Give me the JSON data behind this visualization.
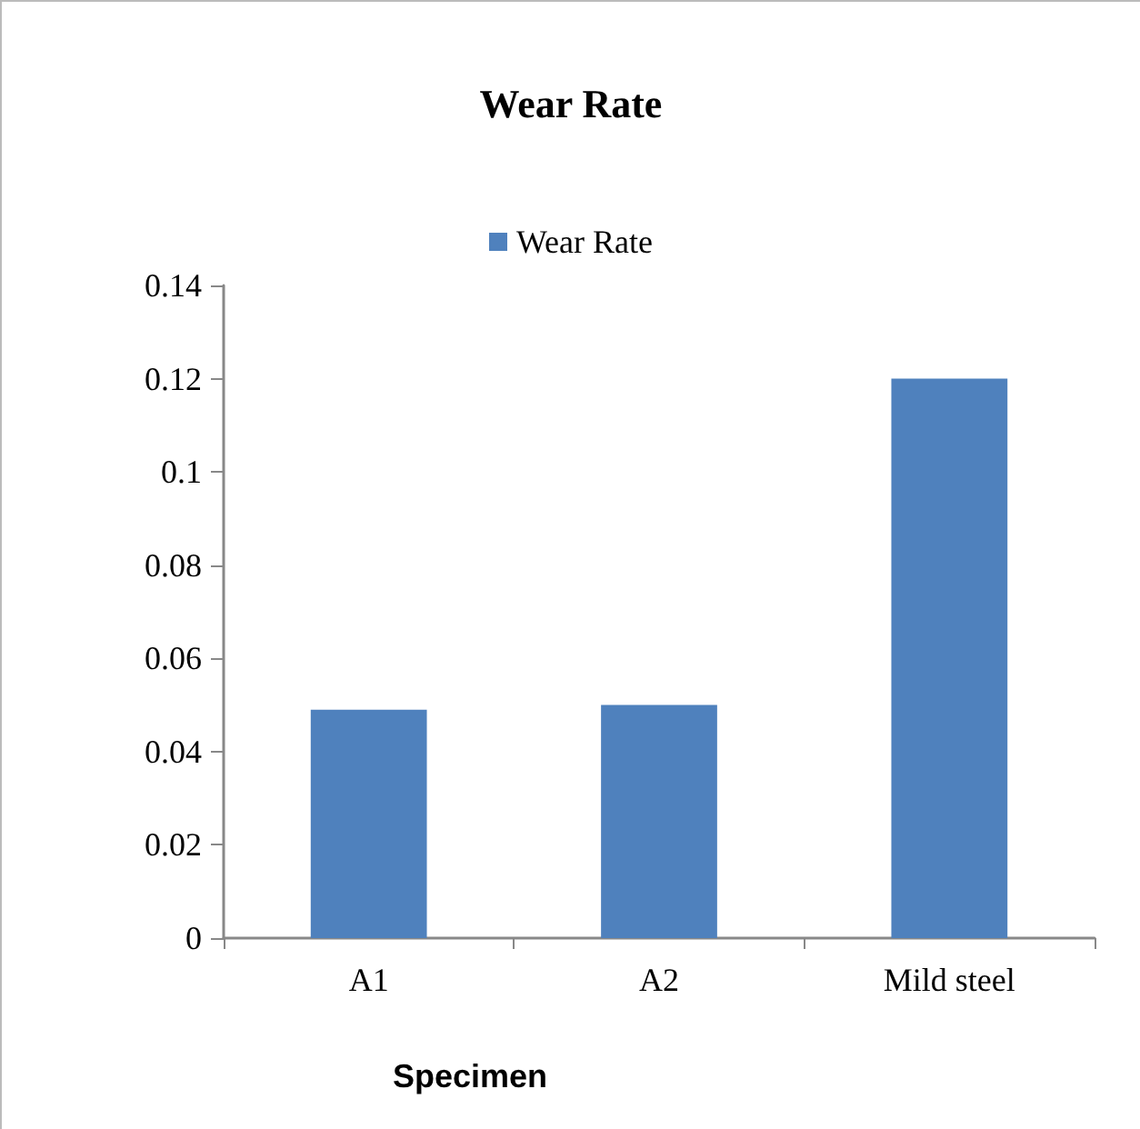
{
  "chart_data": {
    "type": "bar",
    "title": "Wear Rate",
    "xlabel": "Specimen",
    "categories": [
      "A1",
      "A2",
      "Mild steel"
    ],
    "series": [
      {
        "name": "Wear Rate",
        "color": "#4f81bd",
        "values": [
          0.049,
          0.05,
          0.12
        ]
      }
    ],
    "ylim": [
      0,
      0.14
    ],
    "yticks": [
      0,
      0.02,
      0.04,
      0.06,
      0.08,
      0.1,
      0.12,
      0.14
    ],
    "grid": false,
    "legend": "top"
  }
}
